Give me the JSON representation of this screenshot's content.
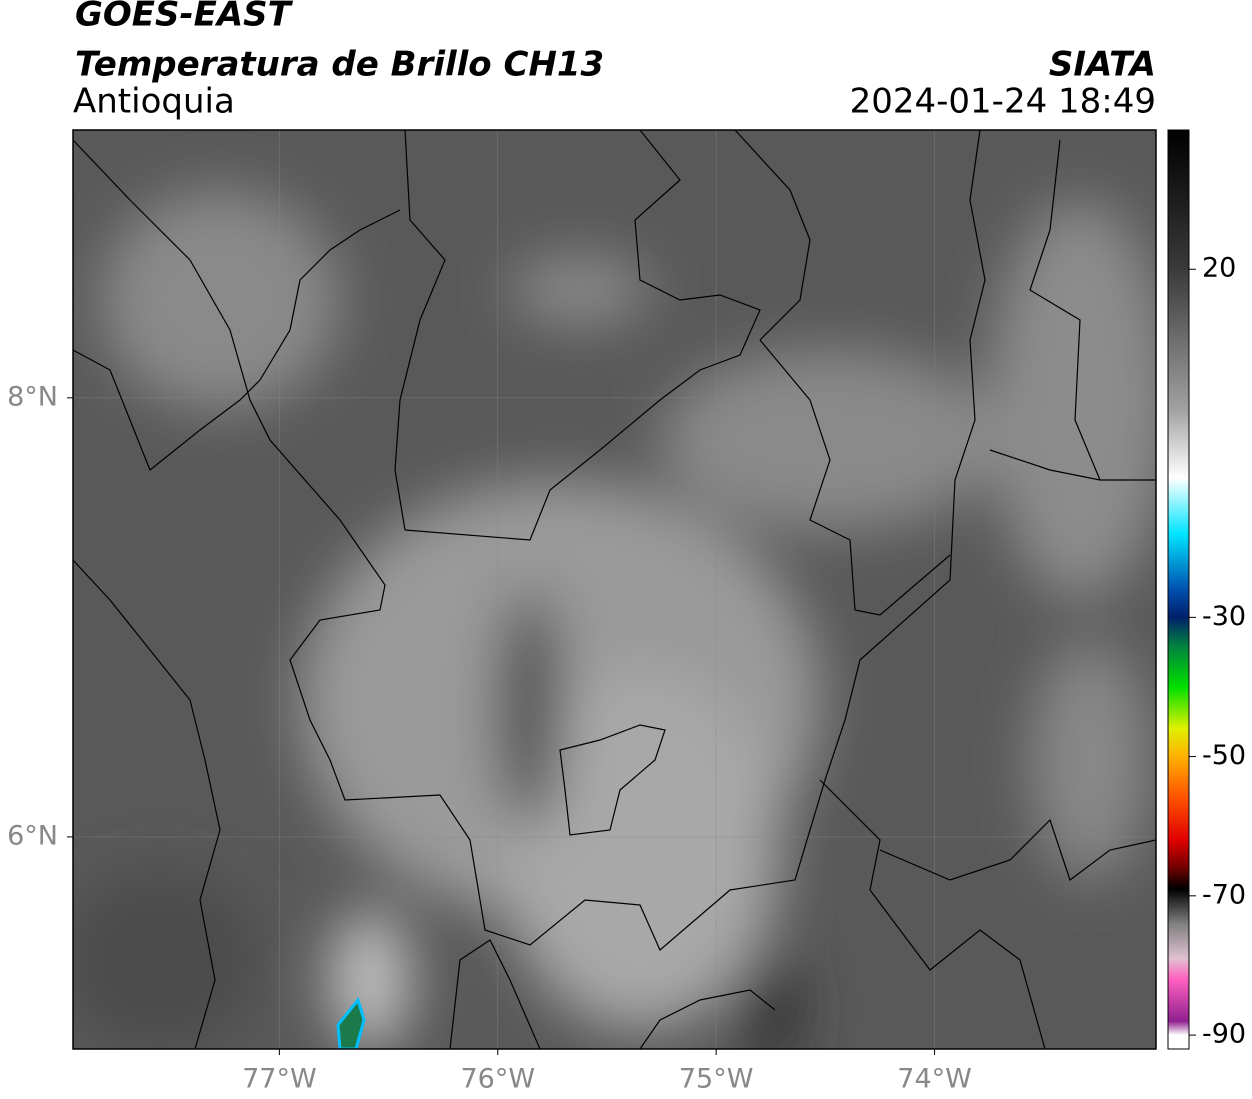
{
  "header": {
    "satellite": "GOES-EAST",
    "product": "Temperatura de Brillo CH13",
    "region": "Antioquia",
    "agency": "SIATA",
    "datetime": "2024-01-24 18:49"
  },
  "map": {
    "xlim": [
      -77.945,
      -72.986
    ],
    "ylim": [
      5.034,
      9.22
    ],
    "xticks": [
      {
        "value": -77,
        "label": "77°W"
      },
      {
        "value": -76,
        "label": "76°W"
      },
      {
        "value": -75,
        "label": "75°W"
      },
      {
        "value": -74,
        "label": "74°W"
      }
    ],
    "yticks": [
      {
        "value": 8,
        "label": "8°N"
      },
      {
        "value": 6,
        "label": "6°N"
      }
    ],
    "grid": true
  },
  "colorbar": {
    "lim": [
      -92,
      40
    ],
    "ticks": [
      20,
      -30,
      -50,
      -70,
      -90
    ],
    "colormap": [
      {
        "value": 40,
        "color": "#000000"
      },
      {
        "value": 20,
        "color": "#3a3a3a"
      },
      {
        "value": 0,
        "color": "#a0a0a0"
      },
      {
        "value": -10,
        "color": "#ffffff"
      },
      {
        "value": -18,
        "color": "#00e5ff"
      },
      {
        "value": -26,
        "color": "#0050b0"
      },
      {
        "value": -30,
        "color": "#00206a"
      },
      {
        "value": -34,
        "color": "#008040"
      },
      {
        "value": -40,
        "color": "#00e000"
      },
      {
        "value": -46,
        "color": "#e0f000"
      },
      {
        "value": -50,
        "color": "#ffb000"
      },
      {
        "value": -56,
        "color": "#ff5000"
      },
      {
        "value": -62,
        "color": "#e00000"
      },
      {
        "value": -66,
        "color": "#700000"
      },
      {
        "value": -69,
        "color": "#000000"
      },
      {
        "value": -74,
        "color": "#808080"
      },
      {
        "value": -79,
        "color": "#e0c0d0"
      },
      {
        "value": -82,
        "color": "#ff60c0"
      },
      {
        "value": -88,
        "color": "#902090"
      },
      {
        "value": -90,
        "color": "#ffffff"
      }
    ]
  }
}
